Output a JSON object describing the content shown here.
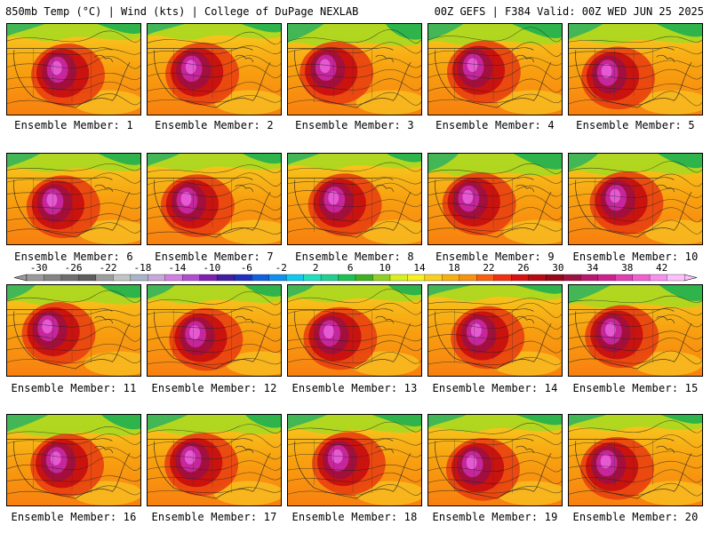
{
  "header": {
    "title": "850mb Temp (°C) | Wind (kts) | College of DuPage NEXLAB",
    "run_info": "00Z GEFS | F384 Valid: 00Z WED JUN 25 2025"
  },
  "colorbar": {
    "ticks": [
      "-30",
      "-26",
      "-22",
      "-18",
      "-14",
      "-10",
      "-6",
      "-2",
      "2",
      "6",
      "10",
      "14",
      "18",
      "22",
      "26",
      "30",
      "34",
      "38",
      "42"
    ],
    "colors": [
      "#9a9a9a",
      "#848484",
      "#6e6e6e",
      "#5e5e5e",
      "#9e9e9e",
      "#c4c4c4",
      "#aab4c8",
      "#c8a8d8",
      "#d080e0",
      "#b050d0",
      "#8020b0",
      "#4020a0",
      "#2030c0",
      "#1060e0",
      "#1090f0",
      "#10c8f0",
      "#20e0c0",
      "#20d090",
      "#20c050",
      "#40b020",
      "#90d020",
      "#d8f020",
      "#f8f020",
      "#f8d020",
      "#f8b010",
      "#f89010",
      "#f86010",
      "#f03010",
      "#d81010",
      "#b80a10",
      "#980818",
      "#a01040",
      "#b81870",
      "#d02090",
      "#e040b0",
      "#f060d0",
      "#f890f0",
      "#fcc0fc"
    ]
  },
  "members": [
    {
      "label": "Ensemble Member: 1"
    },
    {
      "label": "Ensemble Member: 2"
    },
    {
      "label": "Ensemble Member: 3"
    },
    {
      "label": "Ensemble Member: 4"
    },
    {
      "label": "Ensemble Member: 5"
    },
    {
      "label": "Ensemble Member: 6"
    },
    {
      "label": "Ensemble Member: 7"
    },
    {
      "label": "Ensemble Member: 8"
    },
    {
      "label": "Ensemble Member: 9"
    },
    {
      "label": "Ensemble Member: 10"
    },
    {
      "label": "Ensemble Member: 11"
    },
    {
      "label": "Ensemble Member: 12"
    },
    {
      "label": "Ensemble Member: 13"
    },
    {
      "label": "Ensemble Member: 14"
    },
    {
      "label": "Ensemble Member: 15"
    },
    {
      "label": "Ensemble Member: 16"
    },
    {
      "label": "Ensemble Member: 17"
    },
    {
      "label": "Ensemble Member: 18"
    },
    {
      "label": "Ensemble Member: 19"
    },
    {
      "label": "Ensemble Member: 20"
    }
  ]
}
